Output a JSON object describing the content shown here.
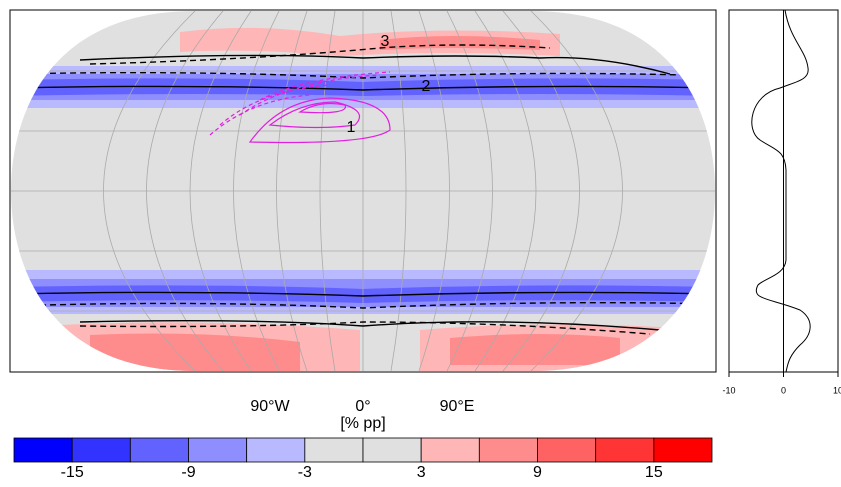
{
  "map": {
    "x_labels": [
      "90°W",
      "0°",
      "90°E"
    ],
    "unit_label": "[% pp]",
    "contour_labels": [
      "1",
      "2",
      "3"
    ]
  },
  "colorbar": {
    "range": [
      -18,
      18
    ],
    "ticks": [
      -15,
      -9,
      -3,
      3,
      9,
      15
    ],
    "colors": [
      "#0000ff",
      "#3333ff",
      "#6262ff",
      "#8e8eff",
      "#b9b9ff",
      "#e0e0e0",
      "#e0e0e0",
      "#ffb6b6",
      "#ff8c8c",
      "#ff6262",
      "#ff3434",
      "#ff0000"
    ]
  },
  "profile": {
    "xlim": [
      -10,
      10
    ],
    "xticks": [
      -10,
      0,
      10
    ]
  }
}
